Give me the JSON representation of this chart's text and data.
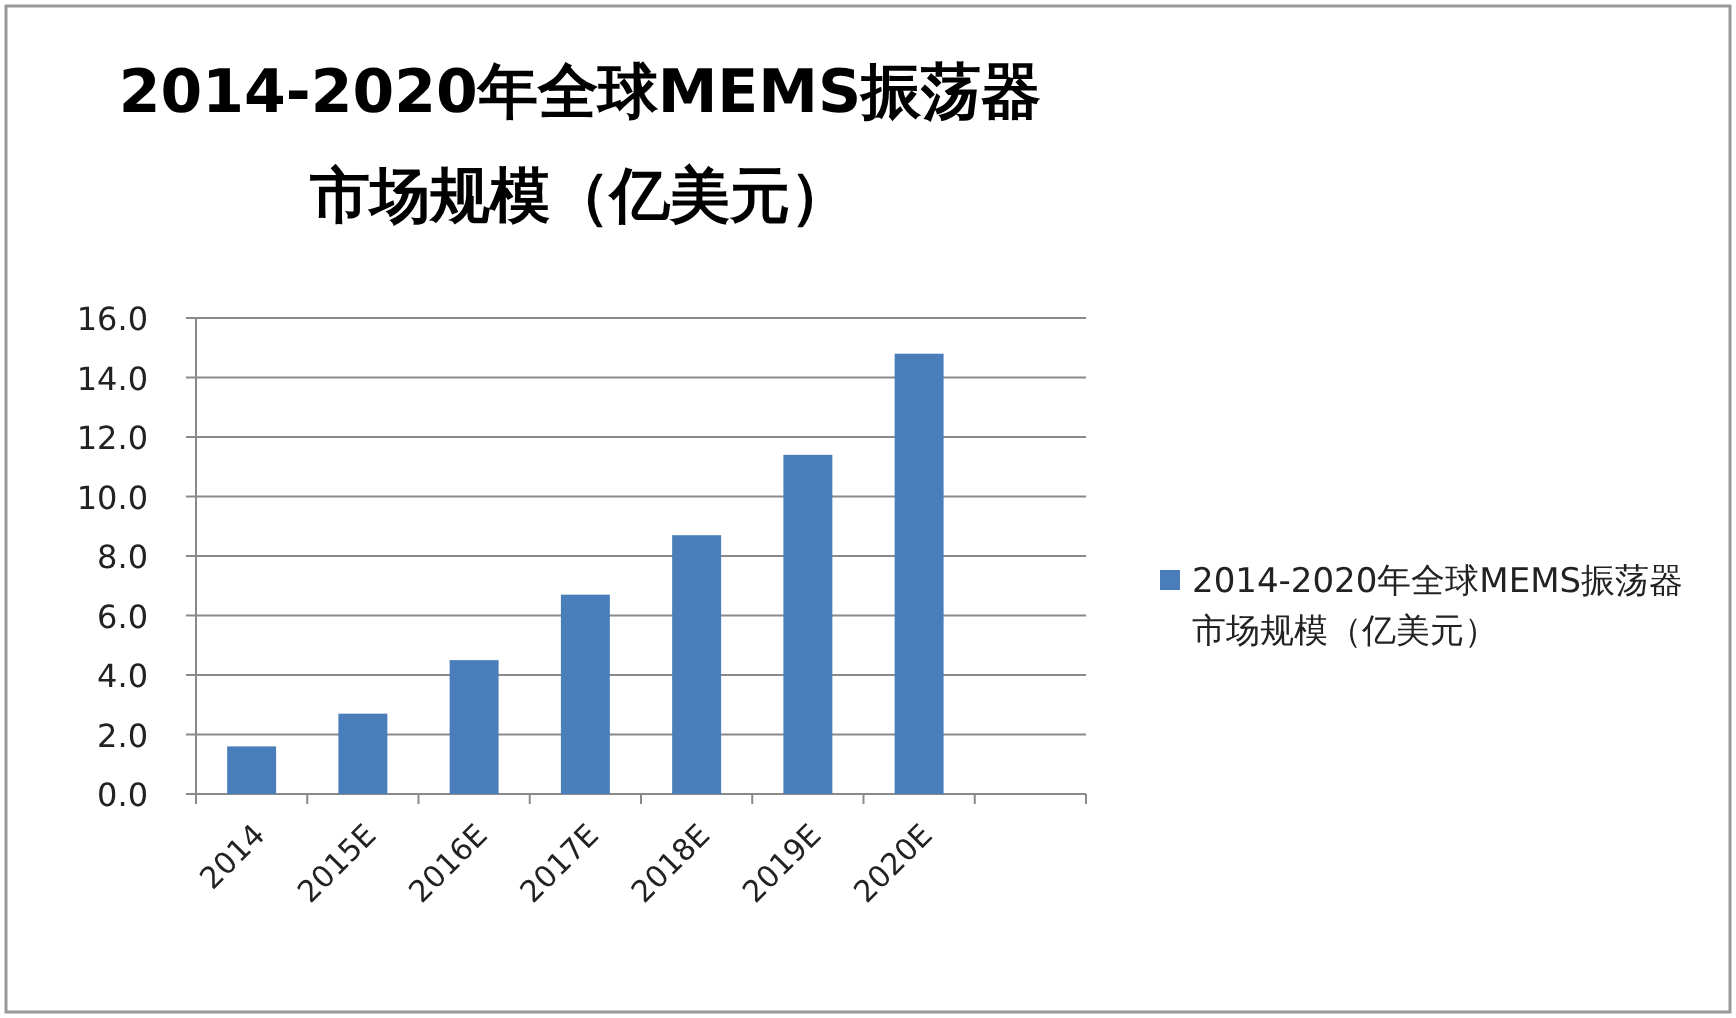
{
  "chart_data": {
    "type": "bar",
    "title": "2014-2020年全球MEMS振荡器市场规模（亿美元）",
    "categories": [
      "2014",
      "2015E",
      "2016E",
      "2017E",
      "2018E",
      "2019E",
      "2020E",
      null
    ],
    "series": [
      {
        "name": "2014-2020年全球MEMS振荡器市场规模（亿美元）",
        "color": "#4a7ebb",
        "values": [
          1.6,
          2.7,
          4.5,
          6.7,
          8.7,
          11.4,
          14.8,
          null
        ]
      }
    ],
    "ylim": [
      0,
      16
    ],
    "yticks": [
      {
        "value": 0,
        "label": "0.0"
      },
      {
        "value": 2,
        "label": "2.0"
      },
      {
        "value": 4,
        "label": "4.0"
      },
      {
        "value": 6,
        "label": "6.0"
      },
      {
        "value": 8,
        "label": "8.0"
      },
      {
        "value": 10,
        "label": "10.0"
      },
      {
        "value": 12,
        "label": "12.0"
      },
      {
        "value": 14,
        "label": "14.0"
      },
      {
        "value": 16,
        "label": "16.0"
      }
    ],
    "grid": "y",
    "legend": "right"
  }
}
